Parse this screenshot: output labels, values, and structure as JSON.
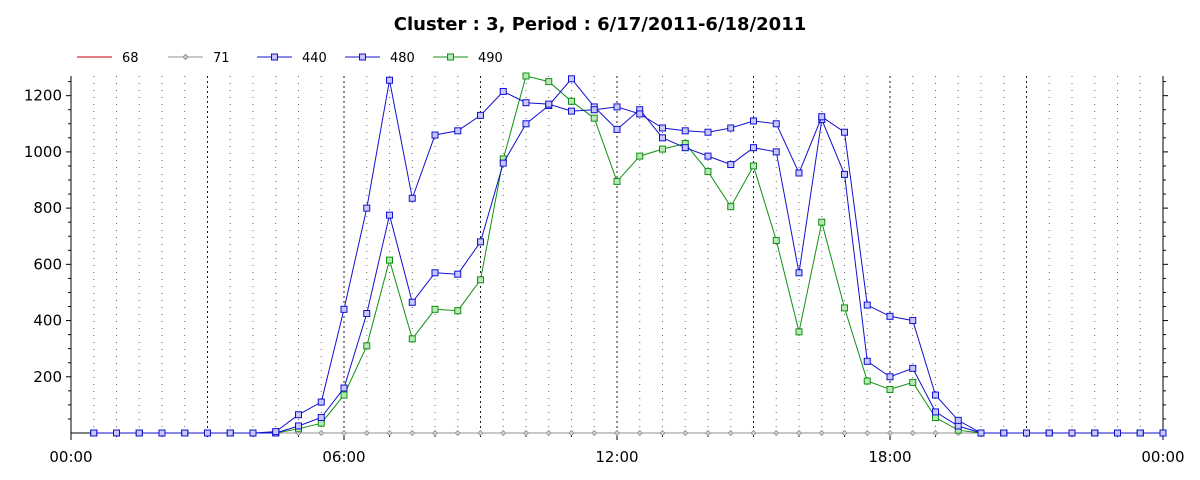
{
  "chart_data": {
    "type": "line",
    "title": "Cluster : 3, Period : 6/17/2011-6/18/2011",
    "xlabel": "",
    "ylabel": "",
    "x_unit": "hours",
    "xlim": [
      0,
      24
    ],
    "ylim": [
      0,
      1270
    ],
    "x_ticks": [
      {
        "value": 0,
        "label": "00:00"
      },
      {
        "value": 6,
        "label": "06:00"
      },
      {
        "value": 12,
        "label": "12:00"
      },
      {
        "value": 18,
        "label": "18:00"
      },
      {
        "value": 24,
        "label": "00:00"
      }
    ],
    "y_ticks": [
      200,
      400,
      600,
      800,
      1000,
      1200
    ],
    "grid": "vertical dotted every 30 min",
    "legend_position": "top-left",
    "x": [
      0.5,
      1,
      1.5,
      2,
      2.5,
      3,
      3.5,
      4,
      4.5,
      5,
      5.5,
      6,
      6.5,
      7,
      7.5,
      8,
      8.5,
      9,
      9.5,
      10,
      10.5,
      11,
      11.5,
      12,
      12.5,
      13,
      13.5,
      14,
      14.5,
      15,
      15.5,
      16,
      16.5,
      17,
      17.5,
      18,
      18.5,
      19,
      19.5,
      20,
      20.5,
      21,
      21.5,
      22,
      22.5,
      23,
      23.5,
      24
    ],
    "series": [
      {
        "name": "68",
        "color": "#c00000",
        "marker": "none",
        "values": [
          0,
          0,
          0,
          0,
          0,
          0,
          0,
          0,
          0,
          0,
          0,
          0,
          0,
          0,
          0,
          0,
          0,
          0,
          0,
          0,
          0,
          0,
          0,
          0,
          0,
          0,
          0,
          0,
          0,
          0,
          0,
          0,
          0,
          0,
          0,
          0,
          0,
          0,
          0,
          0,
          0,
          0,
          0,
          0,
          0,
          0,
          0,
          0
        ]
      },
      {
        "name": "71",
        "color": "#909090",
        "marker": "diamond",
        "values": [
          0,
          0,
          0,
          0,
          0,
          0,
          0,
          0,
          0,
          0,
          0,
          0,
          0,
          0,
          0,
          0,
          0,
          0,
          0,
          0,
          0,
          0,
          0,
          0,
          0,
          0,
          0,
          0,
          0,
          0,
          0,
          0,
          0,
          0,
          0,
          0,
          0,
          0,
          0,
          0,
          0,
          0,
          0,
          0,
          0,
          0,
          0,
          0
        ]
      },
      {
        "name": "440",
        "color": "#1010d0",
        "marker": "square",
        "values": [
          0,
          0,
          0,
          0,
          0,
          0,
          0,
          0,
          5,
          65,
          110,
          440,
          800,
          1255,
          835,
          1060,
          1075,
          1130,
          1215,
          1175,
          1170,
          1145,
          1150,
          1160,
          1135,
          1085,
          1075,
          1070,
          1085,
          1110,
          1100,
          925,
          1125,
          1070,
          455,
          415,
          400,
          135,
          45,
          0,
          0,
          0,
          0,
          0,
          0,
          0,
          0,
          0
        ]
      },
      {
        "name": "480",
        "color": "#1010d0",
        "marker": "square",
        "values": [
          0,
          0,
          0,
          0,
          0,
          0,
          0,
          0,
          0,
          25,
          55,
          160,
          425,
          775,
          465,
          570,
          565,
          680,
          960,
          1100,
          1165,
          1260,
          1160,
          1080,
          1150,
          1050,
          1015,
          985,
          955,
          1015,
          1000,
          570,
          1115,
          920,
          255,
          200,
          230,
          75,
          25,
          0,
          0,
          0,
          0,
          0,
          0,
          0,
          0,
          0
        ]
      },
      {
        "name": "490",
        "color": "#109010",
        "marker": "square",
        "values": [
          0,
          0,
          0,
          0,
          0,
          0,
          0,
          0,
          0,
          15,
          35,
          135,
          310,
          615,
          335,
          440,
          435,
          545,
          975,
          1270,
          1250,
          1180,
          1120,
          895,
          985,
          1010,
          1030,
          930,
          805,
          950,
          685,
          360,
          750,
          445,
          185,
          155,
          180,
          55,
          10,
          0,
          0,
          0,
          0,
          0,
          0,
          0,
          0,
          0
        ]
      }
    ]
  }
}
